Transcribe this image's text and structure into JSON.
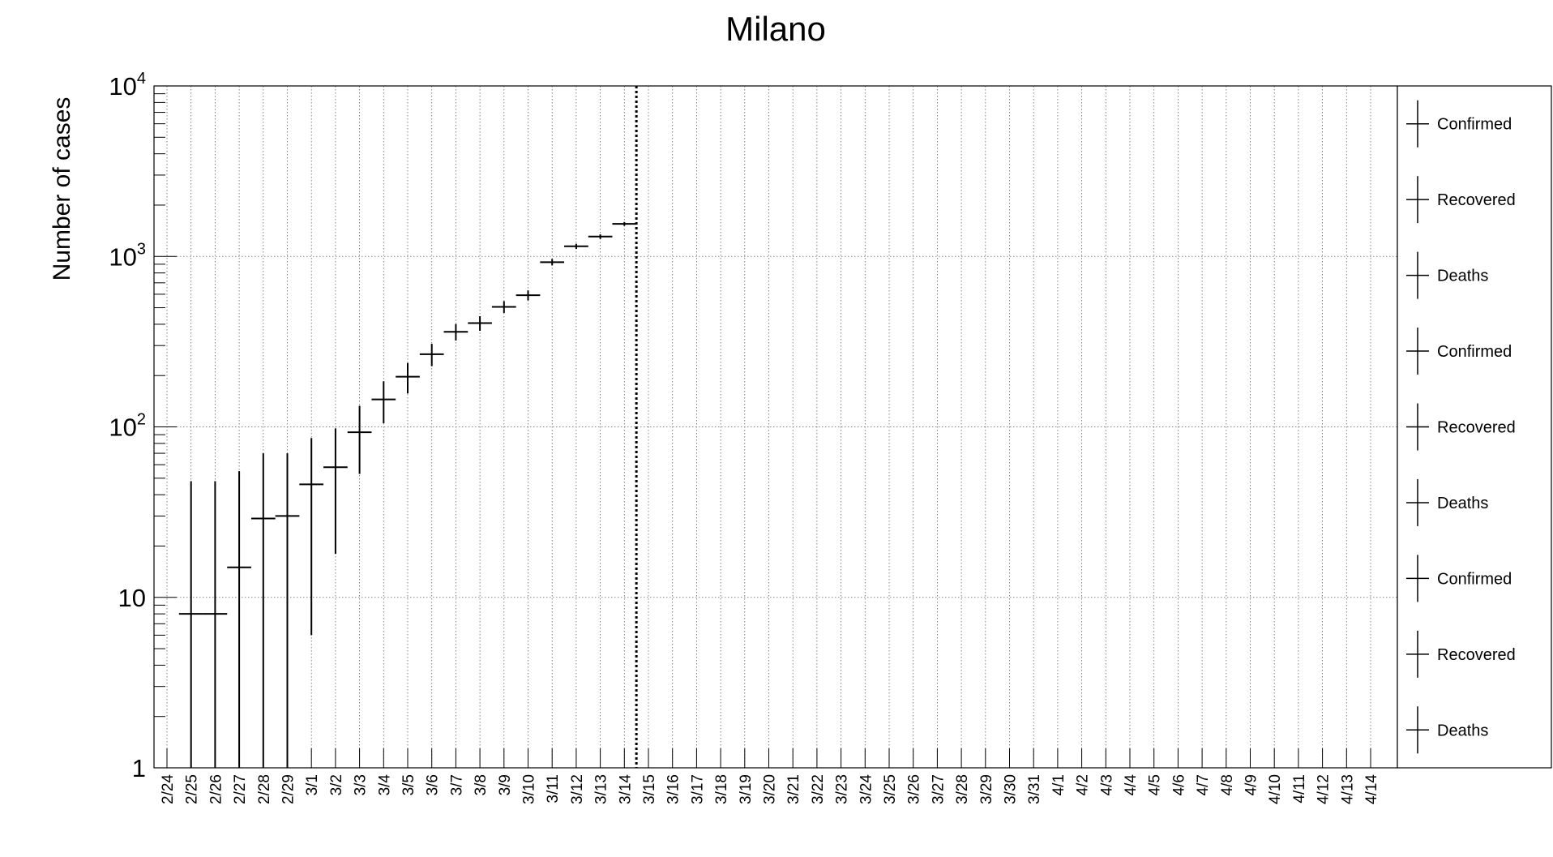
{
  "chart_data": {
    "type": "scatter",
    "title": "Milano",
    "ylabel": "Number of cases",
    "xlabel": "",
    "y_scale": "log",
    "ylim": [
      1,
      10000
    ],
    "grid": true,
    "legend_position": "right",
    "categories": [
      "2/24",
      "2/25",
      "2/26",
      "2/27",
      "2/28",
      "2/29",
      "3/1",
      "3/2",
      "3/3",
      "3/4",
      "3/5",
      "3/6",
      "3/7",
      "3/8",
      "3/9",
      "3/10",
      "3/11",
      "3/12",
      "3/13",
      "3/14",
      "3/15",
      "3/16",
      "3/17",
      "3/18",
      "3/19",
      "3/20",
      "3/21",
      "3/22",
      "3/23",
      "3/24",
      "3/25",
      "3/26",
      "3/27",
      "3/28",
      "3/29",
      "3/30",
      "3/31",
      "4/1",
      "4/2",
      "4/3",
      "4/4",
      "4/5",
      "4/6",
      "4/7",
      "4/8",
      "4/9",
      "4/10",
      "4/11",
      "4/12",
      "4/13",
      "4/14"
    ],
    "y_tick_labels": [
      {
        "value": 1,
        "base": "1",
        "exp": ""
      },
      {
        "value": 10,
        "base": "10",
        "exp": ""
      },
      {
        "value": 100,
        "base": "10",
        "exp": "2"
      },
      {
        "value": 1000,
        "base": "10",
        "exp": "3"
      },
      {
        "value": 10000,
        "base": "10",
        "exp": "4"
      }
    ],
    "series": [
      {
        "name": "Confirmed",
        "points": [
          {
            "x": "2/25",
            "y": 8,
            "y_low": 1,
            "y_high": 48
          },
          {
            "x": "2/26",
            "y": 8,
            "y_low": 1,
            "y_high": 48
          },
          {
            "x": "2/27",
            "y": 15,
            "y_low": 1,
            "y_high": 55
          },
          {
            "x": "2/28",
            "y": 29,
            "y_low": 1,
            "y_high": 70
          },
          {
            "x": "2/29",
            "y": 30,
            "y_low": 1,
            "y_high": 70
          },
          {
            "x": "3/1",
            "y": 46,
            "y_low": 6,
            "y_high": 86
          },
          {
            "x": "3/2",
            "y": 58,
            "y_low": 18,
            "y_high": 98
          },
          {
            "x": "3/3",
            "y": 93,
            "y_low": 53,
            "y_high": 133
          },
          {
            "x": "3/4",
            "y": 145,
            "y_low": 105,
            "y_high": 185
          },
          {
            "x": "3/5",
            "y": 197,
            "y_low": 157,
            "y_high": 237
          },
          {
            "x": "3/6",
            "y": 267,
            "y_low": 227,
            "y_high": 307
          },
          {
            "x": "3/7",
            "y": 361,
            "y_low": 321,
            "y_high": 401
          },
          {
            "x": "3/8",
            "y": 406,
            "y_low": 366,
            "y_high": 446
          },
          {
            "x": "3/9",
            "y": 506,
            "y_low": 466,
            "y_high": 546
          },
          {
            "x": "3/10",
            "y": 592,
            "y_low": 552,
            "y_high": 632
          },
          {
            "x": "3/11",
            "y": 925,
            "y_low": 885,
            "y_high": 965
          },
          {
            "x": "3/12",
            "y": 1146,
            "y_low": 1106,
            "y_high": 1186
          },
          {
            "x": "3/13",
            "y": 1307,
            "y_low": 1267,
            "y_high": 1347
          },
          {
            "x": "3/14",
            "y": 1551,
            "y_low": 1511,
            "y_high": 1591
          }
        ]
      },
      {
        "name": "Recovered",
        "points": []
      },
      {
        "name": "Deaths",
        "points": []
      }
    ],
    "vertical_marker": {
      "x": "3/15",
      "style": "dotted"
    },
    "legend_entries": [
      "Confirmed",
      "Recovered",
      "Deaths",
      "Confirmed",
      "Recovered",
      "Deaths",
      "Confirmed",
      "Recovered",
      "Deaths"
    ]
  }
}
